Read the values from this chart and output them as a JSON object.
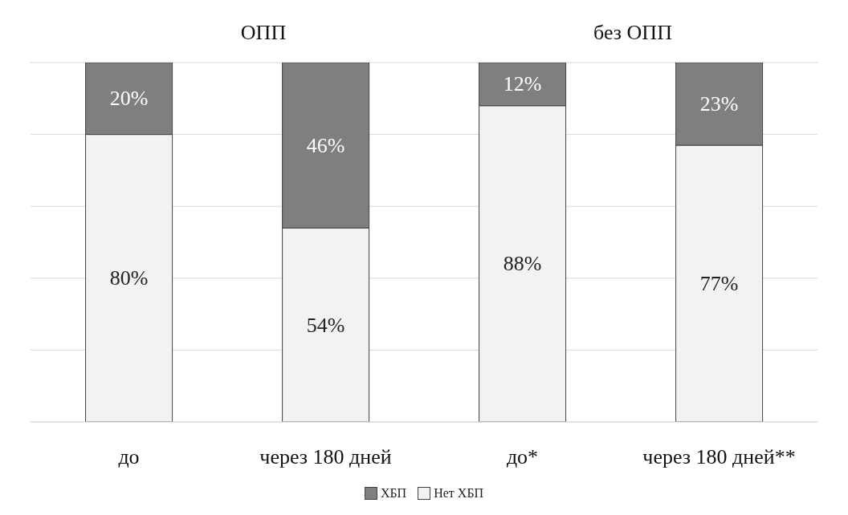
{
  "chart_data": {
    "type": "bar",
    "stacked": true,
    "categories": [
      "до",
      "через 180 дней",
      "до*",
      "через 180 дней**"
    ],
    "series": [
      {
        "name": "Нет ХБП",
        "color": "#f2f2f2",
        "values": [
          80,
          54,
          88,
          77
        ],
        "value_labels": [
          "80%",
          "54%",
          "88%",
          "77%"
        ]
      },
      {
        "name": "ХБП",
        "color": "#7f7f7f",
        "values": [
          20,
          46,
          12,
          23
        ],
        "value_labels": [
          "20%",
          "46%",
          "12%",
          "23%"
        ]
      }
    ],
    "annotations": [
      "ОПП",
      "без ОПП"
    ],
    "ylim": [
      0,
      100
    ],
    "yticks": [
      0,
      20,
      40,
      60,
      80,
      100
    ],
    "grid": "y",
    "tick_labels": "x",
    "legend": "bottom"
  }
}
